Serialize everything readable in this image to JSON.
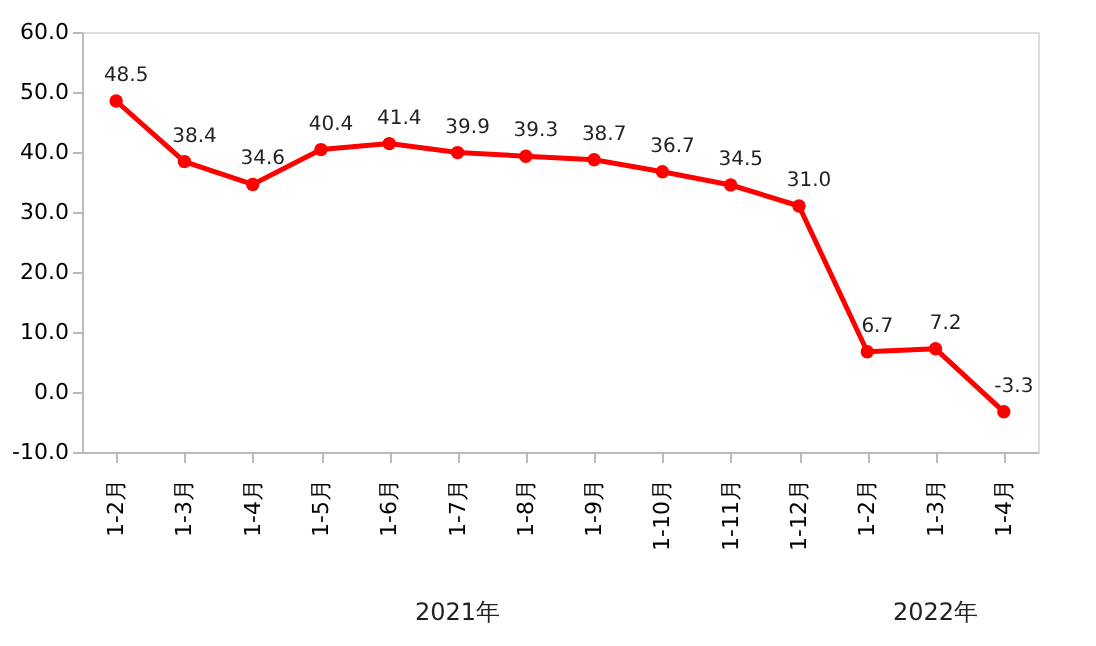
{
  "chart_data": {
    "type": "line",
    "categories": [
      "1-2月",
      "1-3月",
      "1-4月",
      "1-5月",
      "1-6月",
      "1-7月",
      "1-8月",
      "1-9月",
      "1-10月",
      "1-11月",
      "1-12月",
      "1-2月",
      "1-3月",
      "1-4月"
    ],
    "series": [
      {
        "color": "#ff0000",
        "values": [
          48.5,
          38.4,
          34.6,
          40.4,
          41.4,
          39.9,
          39.3,
          38.7,
          36.7,
          34.5,
          31.0,
          6.7,
          7.2,
          -3.3
        ],
        "value_labels": [
          "48.5",
          "38.4",
          "34.6",
          "40.4",
          "41.4",
          "39.9",
          "39.3",
          "38.7",
          "36.7",
          "34.5",
          "31.0",
          "6.7",
          "7.2",
          "-3.3"
        ]
      }
    ],
    "ylim": [
      -10,
      60
    ],
    "yticks": [
      {
        "value": -10,
        "label": "-10.0"
      },
      {
        "value": 0,
        "label": "0.0"
      },
      {
        "value": 10,
        "label": "10.0"
      },
      {
        "value": 20,
        "label": "20.0"
      },
      {
        "value": 30,
        "label": "30.0"
      },
      {
        "value": 40,
        "label": "40.0"
      },
      {
        "value": 50,
        "label": "50.0"
      },
      {
        "value": 60,
        "label": "60.0"
      }
    ],
    "annotations": [
      "2021年",
      "2022年"
    ],
    "data_labels": true,
    "marker": "circle",
    "line_style": "solid",
    "grid": false,
    "legend": false
  }
}
